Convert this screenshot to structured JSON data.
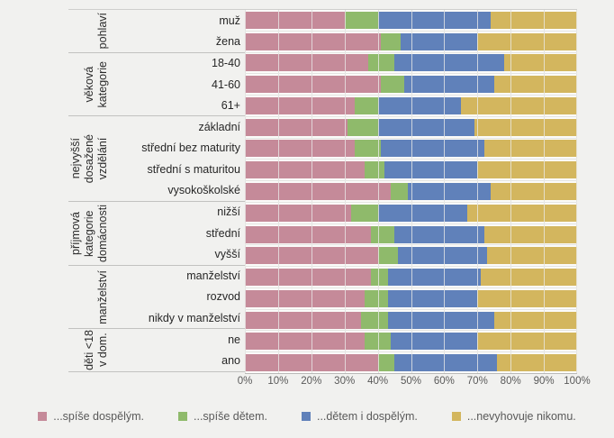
{
  "chart_data": {
    "type": "bar",
    "subtype": "horizontal-stacked-100pct",
    "title": "",
    "xlabel": "",
    "ylabel": "",
    "unit": "%",
    "xlim": [
      0,
      100
    ],
    "grid": "vertical",
    "legend_position": "bottom",
    "x_ticks": [
      "0%",
      "10%",
      "20%",
      "30%",
      "40%",
      "50%",
      "60%",
      "70%",
      "80%",
      "90%",
      "100%"
    ],
    "series_names": [
      "...spíše dospělým.",
      "...spíše dětem.",
      "...dětem i dospělým.",
      "...nevyhovuje nikomu."
    ],
    "series_colors": [
      "#c58a99",
      "#8fba6b",
      "#6081ba",
      "#d3b65e"
    ],
    "groups": [
      {
        "label_lines": [
          "pohlaví"
        ],
        "rows": [
          {
            "label": "muž",
            "values": [
              30,
              10,
              34,
              26
            ]
          },
          {
            "label": "žena",
            "values": [
              41,
              6,
              23,
              30
            ]
          }
        ]
      },
      {
        "label_lines": [
          "věková",
          "kategorie"
        ],
        "rows": [
          {
            "label": "18-40",
            "values": [
              37,
              8,
              33,
              22
            ]
          },
          {
            "label": "41-60",
            "values": [
              41,
              7,
              27,
              25
            ]
          },
          {
            "label": "61+",
            "values": [
              33,
              7,
              25,
              35
            ]
          }
        ]
      },
      {
        "label_lines": [
          "nejvyšší",
          "dosažené",
          "vzdělání"
        ],
        "rows": [
          {
            "label": "základní",
            "values": [
              31,
              9,
              29,
              31
            ]
          },
          {
            "label": "střední bez maturity",
            "values": [
              33,
              8,
              31,
              28
            ]
          },
          {
            "label": "střední s maturitou",
            "values": [
              36,
              6,
              28,
              30
            ]
          },
          {
            "label": "vysokoškolské",
            "values": [
              44,
              5,
              25,
              26
            ]
          }
        ]
      },
      {
        "label_lines": [
          "příjmová",
          "kategorie",
          "domácnosti"
        ],
        "rows": [
          {
            "label": "nižší",
            "values": [
              32,
              8,
              27,
              33
            ]
          },
          {
            "label": "střední",
            "values": [
              38,
              7,
              27,
              28
            ]
          },
          {
            "label": "vyšší",
            "values": [
              40,
              6,
              27,
              27
            ]
          }
        ]
      },
      {
        "label_lines": [
          "manželství"
        ],
        "rows": [
          {
            "label": "manželství",
            "values": [
              38,
              5,
              28,
              29
            ]
          },
          {
            "label": "rozvod",
            "values": [
              36,
              7,
              27,
              30
            ]
          },
          {
            "label": "nikdy v manželství",
            "values": [
              35,
              8,
              32,
              25
            ]
          }
        ]
      },
      {
        "label_lines": [
          "děti <18",
          "v dom."
        ],
        "rows": [
          {
            "label": "ne",
            "values": [
              36,
              8,
              26,
              30
            ]
          },
          {
            "label": "ano",
            "values": [
              40,
              5,
              31,
              24
            ]
          }
        ]
      }
    ]
  },
  "page": {
    "background": "#f1f1ef",
    "plot_background": "#fbfbf9",
    "gridline_color": "#c7c7c5",
    "axis_text_color": "#595959",
    "label_text_color": "#262626"
  }
}
